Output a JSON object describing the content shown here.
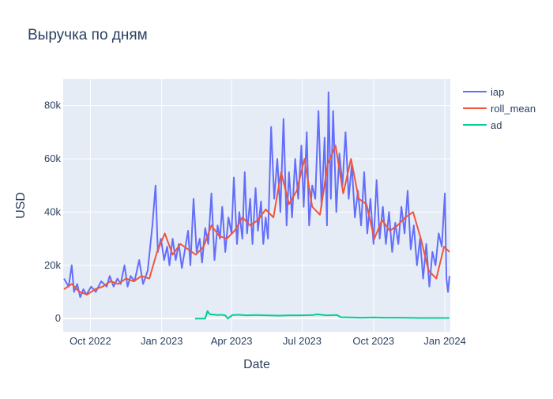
{
  "chart_data": {
    "type": "line",
    "title": "Выручка по дням",
    "xlabel": "Date",
    "ylabel": "USD",
    "x_range": [
      "2022-08-27",
      "2024-01-08"
    ],
    "ylim": [
      -5000,
      90000
    ],
    "x_ticks": [
      {
        "date": "2022-10-01",
        "label": "Oct 2022"
      },
      {
        "date": "2023-01-01",
        "label": "Jan 2023"
      },
      {
        "date": "2023-04-01",
        "label": "Apr 2023"
      },
      {
        "date": "2023-07-01",
        "label": "Jul 2023"
      },
      {
        "date": "2023-10-01",
        "label": "Oct 2023"
      },
      {
        "date": "2024-01-01",
        "label": "Jan 2024"
      }
    ],
    "y_ticks": [
      {
        "value": 0,
        "label": "0"
      },
      {
        "value": 20000,
        "label": "20k"
      },
      {
        "value": 40000,
        "label": "40k"
      },
      {
        "value": 60000,
        "label": "60k"
      },
      {
        "value": 80000,
        "label": "80k"
      }
    ],
    "grid": true,
    "legend_position": "top-right",
    "plot_background": "#e5ecf6",
    "series": [
      {
        "name": "iap",
        "color": "#636efa",
        "x": [
          "2022-08-28",
          "2022-09-03",
          "2022-09-07",
          "2022-09-10",
          "2022-09-14",
          "2022-09-18",
          "2022-09-22",
          "2022-09-26",
          "2022-10-02",
          "2022-10-08",
          "2022-10-15",
          "2022-10-22",
          "2022-10-26",
          "2022-10-31",
          "2022-11-05",
          "2022-11-09",
          "2022-11-14",
          "2022-11-18",
          "2022-11-22",
          "2022-11-27",
          "2022-12-03",
          "2022-12-08",
          "2022-12-14",
          "2022-12-20",
          "2022-12-24",
          "2022-12-27",
          "2022-12-31",
          "2023-01-04",
          "2023-01-08",
          "2023-01-11",
          "2023-01-15",
          "2023-01-19",
          "2023-01-23",
          "2023-01-27",
          "2023-01-31",
          "2023-02-04",
          "2023-02-07",
          "2023-02-11",
          "2023-02-15",
          "2023-02-19",
          "2023-02-22",
          "2023-02-26",
          "2023-03-02",
          "2023-03-06",
          "2023-03-10",
          "2023-03-14",
          "2023-03-17",
          "2023-03-20",
          "2023-03-24",
          "2023-03-28",
          "2023-04-01",
          "2023-04-04",
          "2023-04-08",
          "2023-04-11",
          "2023-04-15",
          "2023-04-18",
          "2023-04-21",
          "2023-04-25",
          "2023-04-28",
          "2023-05-02",
          "2023-05-05",
          "2023-05-09",
          "2023-05-12",
          "2023-05-15",
          "2023-05-18",
          "2023-05-22",
          "2023-05-26",
          "2023-05-30",
          "2023-06-03",
          "2023-06-07",
          "2023-06-11",
          "2023-06-14",
          "2023-06-18",
          "2023-06-22",
          "2023-06-26",
          "2023-06-30",
          "2023-07-03",
          "2023-07-07",
          "2023-07-10",
          "2023-07-14",
          "2023-07-18",
          "2023-07-22",
          "2023-07-26",
          "2023-07-30",
          "2023-08-02",
          "2023-08-04",
          "2023-08-07",
          "2023-08-10",
          "2023-08-14",
          "2023-08-18",
          "2023-08-22",
          "2023-08-26",
          "2023-08-30",
          "2023-09-03",
          "2023-09-07",
          "2023-09-11",
          "2023-09-15",
          "2023-09-19",
          "2023-09-23",
          "2023-09-27",
          "2023-10-01",
          "2023-10-05",
          "2023-10-09",
          "2023-10-13",
          "2023-10-17",
          "2023-10-21",
          "2023-10-25",
          "2023-10-29",
          "2023-11-02",
          "2023-11-06",
          "2023-11-10",
          "2023-11-14",
          "2023-11-18",
          "2023-11-22",
          "2023-11-26",
          "2023-11-30",
          "2023-12-04",
          "2023-12-08",
          "2023-12-12",
          "2023-12-16",
          "2023-12-20",
          "2023-12-24",
          "2023-12-28",
          "2024-01-01",
          "2024-01-03",
          "2024-01-05",
          "2024-01-07"
        ],
        "values": [
          15000,
          12000,
          20000,
          10000,
          13000,
          8000,
          11000,
          9000,
          12000,
          10000,
          14000,
          12000,
          16000,
          12000,
          15000,
          13000,
          20000,
          12000,
          16000,
          14000,
          22000,
          13000,
          18000,
          35000,
          50000,
          25000,
          30000,
          22000,
          27000,
          20000,
          30000,
          22000,
          28000,
          19000,
          26000,
          33000,
          20000,
          45000,
          25000,
          30000,
          21000,
          34000,
          28000,
          47000,
          22000,
          35000,
          30000,
          42000,
          25000,
          38000,
          32000,
          53000,
          28000,
          40000,
          30000,
          55000,
          32000,
          45000,
          28000,
          49000,
          33000,
          44000,
          28000,
          38000,
          30000,
          72000,
          45000,
          60000,
          40000,
          75000,
          35000,
          55000,
          38000,
          60000,
          45000,
          65000,
          42000,
          70000,
          35000,
          50000,
          45000,
          78000,
          42000,
          68000,
          35000,
          85000,
          45000,
          78000,
          40000,
          62000,
          50000,
          70000,
          45000,
          58000,
          38000,
          48000,
          35000,
          55000,
          32000,
          45000,
          28000,
          52000,
          30000,
          42000,
          28000,
          40000,
          25000,
          36000,
          28000,
          42000,
          32000,
          48000,
          26000,
          35000,
          20000,
          30000,
          15000,
          28000,
          12000,
          25000,
          20000,
          32000,
          27000,
          47000,
          15000,
          10000,
          16000
        ]
      },
      {
        "name": "roll_mean",
        "color": "#ef553b",
        "x": [
          "2022-08-28",
          "2022-09-07",
          "2022-09-17",
          "2022-09-27",
          "2022-10-07",
          "2022-10-17",
          "2022-10-27",
          "2022-11-06",
          "2022-11-16",
          "2022-11-26",
          "2022-12-06",
          "2022-12-16",
          "2022-12-26",
          "2023-01-05",
          "2023-01-15",
          "2023-01-25",
          "2023-02-04",
          "2023-02-14",
          "2023-02-24",
          "2023-03-06",
          "2023-03-16",
          "2023-03-26",
          "2023-04-05",
          "2023-04-15",
          "2023-04-25",
          "2023-05-05",
          "2023-05-15",
          "2023-05-25",
          "2023-06-04",
          "2023-06-14",
          "2023-06-24",
          "2023-07-04",
          "2023-07-14",
          "2023-07-24",
          "2023-08-03",
          "2023-08-13",
          "2023-08-23",
          "2023-09-02",
          "2023-09-12",
          "2023-09-22",
          "2023-10-02",
          "2023-10-12",
          "2023-10-22",
          "2023-11-01",
          "2023-11-11",
          "2023-11-21",
          "2023-12-01",
          "2023-12-11",
          "2023-12-21",
          "2023-12-31",
          "2024-01-07"
        ],
        "values": [
          11000,
          13000,
          10000,
          9000,
          11000,
          12000,
          14000,
          13000,
          15000,
          14000,
          16000,
          15000,
          25000,
          32000,
          24000,
          28000,
          26000,
          24000,
          27000,
          35000,
          31000,
          30000,
          33000,
          38000,
          35000,
          37000,
          41000,
          38000,
          55000,
          43000,
          48000,
          60000,
          42000,
          39000,
          58000,
          65000,
          47000,
          60000,
          45000,
          43000,
          30000,
          37000,
          33000,
          35000,
          38000,
          40000,
          30000,
          18000,
          15000,
          27000,
          25000
        ]
      },
      {
        "name": "ad",
        "color": "#00cc96",
        "x": [
          "2023-02-13",
          "2023-02-26",
          "2023-03-01",
          "2023-03-04",
          "2023-03-09",
          "2023-03-14",
          "2023-03-19",
          "2023-03-24",
          "2023-03-27",
          "2023-04-02",
          "2023-04-10",
          "2023-04-20",
          "2023-05-01",
          "2023-05-15",
          "2023-06-01",
          "2023-06-15",
          "2023-07-01",
          "2023-07-15",
          "2023-07-20",
          "2023-08-01",
          "2023-08-15",
          "2023-08-20",
          "2023-09-01",
          "2023-09-15",
          "2023-10-01",
          "2023-10-15",
          "2023-11-01",
          "2023-12-01",
          "2024-01-07"
        ],
        "values": [
          0,
          0,
          2800,
          1600,
          1500,
          1300,
          1400,
          1200,
          0,
          1300,
          1400,
          1200,
          1300,
          1200,
          1100,
          1200,
          1200,
          1300,
          1600,
          1200,
          1300,
          500,
          400,
          300,
          400,
          300,
          300,
          200,
          200
        ]
      }
    ]
  }
}
